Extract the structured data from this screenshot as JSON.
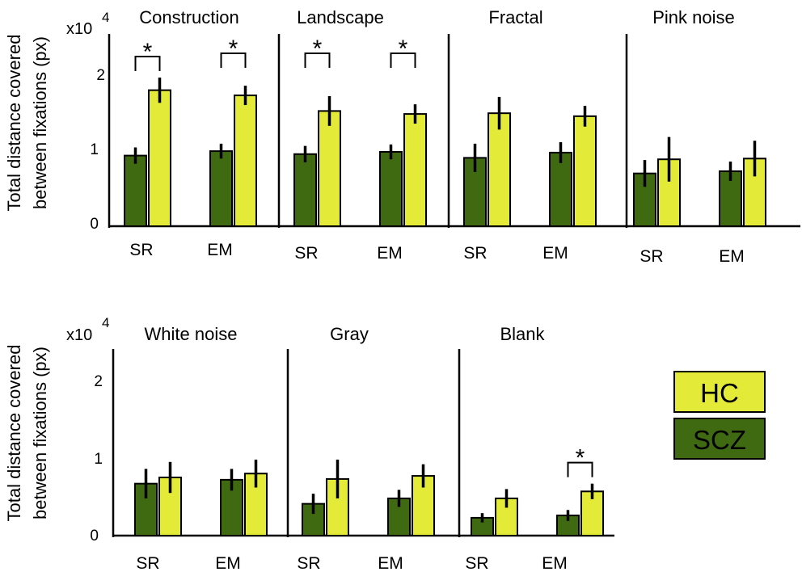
{
  "chart_data": {
    "type": "bar",
    "ylabel_line1": "Total distance covered",
    "ylabel_line2": "between fixations  (px)",
    "y_multiplier": "x10",
    "y_exponent": "4",
    "yticks": [
      "0",
      "1",
      "2"
    ],
    "ylim": [
      0,
      2.4
    ],
    "categories": [
      "SR",
      "EM"
    ],
    "series_names": [
      "SCZ",
      "HC"
    ],
    "significance_marker": "*",
    "panels": [
      {
        "title": "Construction",
        "scz": [
          0.95,
          1.01
        ],
        "scz_err": [
          0.11,
          0.1
        ],
        "hc": [
          1.83,
          1.76
        ],
        "hc_err": [
          0.17,
          0.13
        ],
        "sig": [
          true,
          true
        ]
      },
      {
        "title": "Landscape",
        "scz": [
          0.97,
          1.0
        ],
        "scz_err": [
          0.11,
          0.1
        ],
        "hc": [
          1.55,
          1.51
        ],
        "hc_err": [
          0.2,
          0.13
        ],
        "sig": [
          true,
          true
        ]
      },
      {
        "title": "Fractal",
        "scz": [
          0.92,
          0.99
        ],
        "scz_err": [
          0.19,
          0.14
        ],
        "hc": [
          1.52,
          1.48
        ],
        "hc_err": [
          0.22,
          0.14
        ],
        "sig": [
          false,
          false
        ]
      },
      {
        "title": "Pink noise",
        "scz": [
          0.71,
          0.74
        ],
        "scz_err": [
          0.18,
          0.13
        ],
        "hc": [
          0.9,
          0.91
        ],
        "hc_err": [
          0.3,
          0.24
        ],
        "sig": [
          false,
          false
        ]
      },
      {
        "title": "White noise",
        "scz": [
          0.67,
          0.72
        ],
        "scz_err": [
          0.19,
          0.14
        ],
        "hc": [
          0.75,
          0.8
        ],
        "hc_err": [
          0.2,
          0.18
        ],
        "sig": [
          false,
          false
        ]
      },
      {
        "title": "Gray",
        "scz": [
          0.41,
          0.48
        ],
        "scz_err": [
          0.13,
          0.11
        ],
        "hc": [
          0.73,
          0.77
        ],
        "hc_err": [
          0.25,
          0.15
        ],
        "sig": [
          false,
          false
        ]
      },
      {
        "title": "Blank",
        "scz": [
          0.23,
          0.26
        ],
        "scz_err": [
          0.06,
          0.07
        ],
        "hc": [
          0.48,
          0.57
        ],
        "hc_err": [
          0.12,
          0.1
        ],
        "sig": [
          false,
          true
        ]
      }
    ]
  },
  "legend": {
    "hc_label": "HC",
    "scz_label": "SCZ"
  },
  "colors": {
    "scz": "#3f6a12",
    "hc": "#e4ea38",
    "axis": "#000000",
    "legend_border": "#000000"
  }
}
